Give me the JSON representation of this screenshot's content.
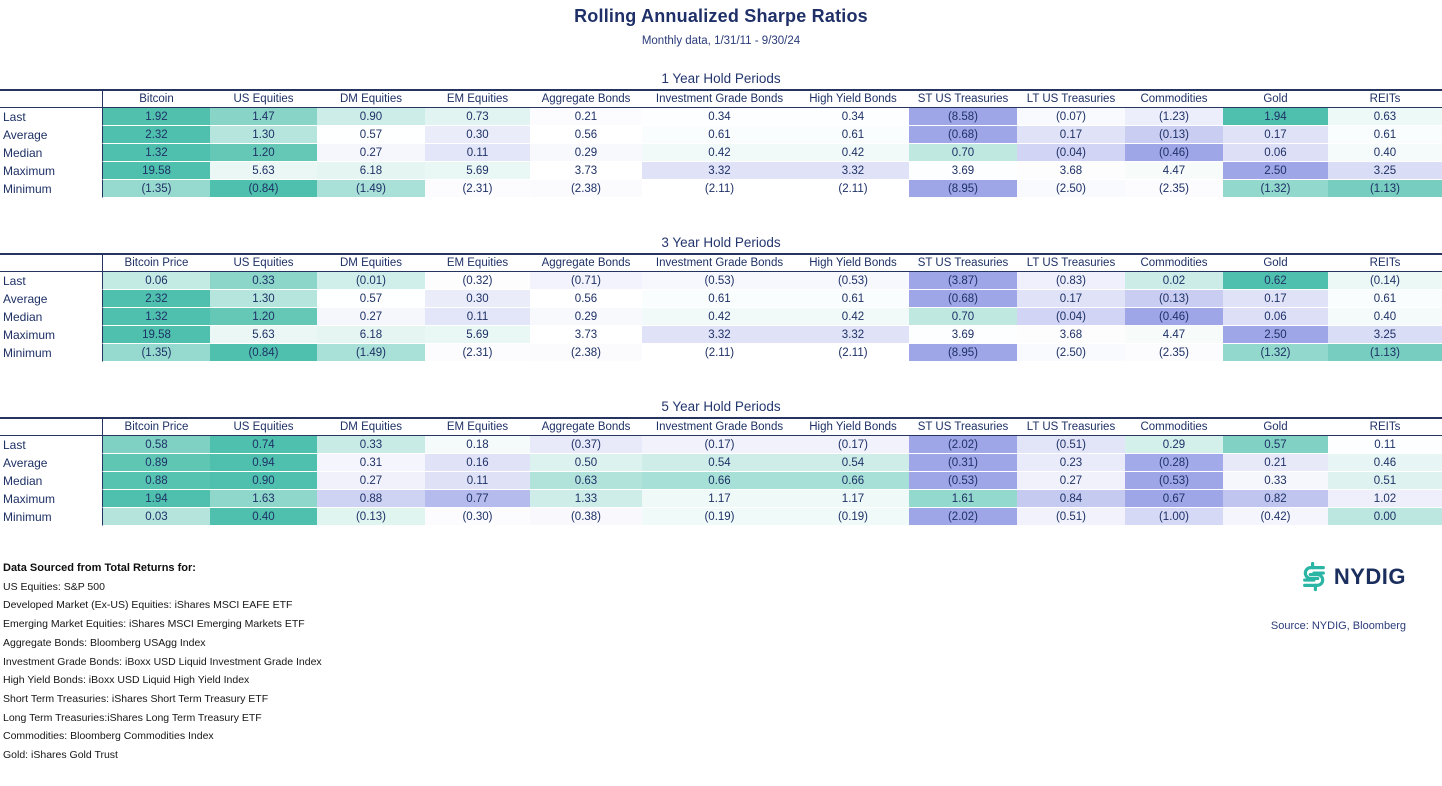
{
  "header": {
    "title": "Rolling Annualized Sharpe Ratios",
    "subtitle": "Monthly data, 1/31/11 - 9/30/24"
  },
  "colors": {
    "scale_max_teal": "#4FC0AD",
    "scale_mid_white": "#FFFFFF",
    "scale_min_purple": "#9EA6E8",
    "text_navy": "#1E3166",
    "border_navy": "#26355F",
    "logo_teal": "#2BB5A4",
    "logo_navy": "#1B2F5E"
  },
  "chart_data": [
    {
      "type": "heatmap",
      "title": "1 Year Hold Periods",
      "color_scale": "per-row: min=purple #9EA6E8, median=white, max=teal #4FC0AD; negatives shown in parentheses",
      "row_labels": [
        "Last",
        "Average",
        "Median",
        "Maximum",
        "Minimum"
      ],
      "columns": [
        "Bitcoin",
        "US Equities",
        "DM Equities",
        "EM Equities",
        "Aggregate Bonds",
        "Investment Grade Bonds",
        "High Yield Bonds",
        "ST US Treasuries",
        "LT US Treasuries",
        "Commodities",
        "Gold",
        "REITs"
      ],
      "rows": [
        [
          1.92,
          1.47,
          0.9,
          0.73,
          0.21,
          0.34,
          0.34,
          -8.58,
          -0.07,
          -1.23,
          1.94,
          0.63
        ],
        [
          2.32,
          1.3,
          0.57,
          0.3,
          0.56,
          0.61,
          0.61,
          -0.68,
          0.17,
          -0.13,
          0.17,
          0.61
        ],
        [
          1.32,
          1.2,
          0.27,
          0.11,
          0.29,
          0.42,
          0.42,
          0.7,
          -0.04,
          -0.46,
          0.06,
          0.4
        ],
        [
          19.58,
          5.63,
          6.18,
          5.69,
          3.73,
          3.32,
          3.32,
          3.69,
          3.68,
          4.47,
          2.5,
          3.25
        ],
        [
          -1.35,
          -0.84,
          -1.49,
          -2.31,
          -2.38,
          -2.11,
          -2.11,
          -8.95,
          -2.5,
          -2.35,
          -1.32,
          -1.13
        ]
      ]
    },
    {
      "type": "heatmap",
      "title": "3 Year Hold Periods",
      "color_scale": "per-row: min=purple #9EA6E8, median=white, max=teal #4FC0AD; negatives shown in parentheses",
      "row_labels": [
        "Last",
        "Average",
        "Median",
        "Maximum",
        "Minimum"
      ],
      "columns": [
        "Bitcoin Price",
        "US Equities",
        "DM Equities",
        "EM Equities",
        "Aggregate Bonds",
        "Investment Grade Bonds",
        "High Yield Bonds",
        "ST US Treasuries",
        "LT US Treasuries",
        "Commodities",
        "Gold",
        "REITs"
      ],
      "rows": [
        [
          0.06,
          0.33,
          -0.01,
          -0.32,
          -0.71,
          -0.53,
          -0.53,
          -3.87,
          -0.83,
          0.02,
          0.62,
          -0.14
        ],
        [
          2.32,
          1.3,
          0.57,
          0.3,
          0.56,
          0.61,
          0.61,
          -0.68,
          0.17,
          -0.13,
          0.17,
          0.61
        ],
        [
          1.32,
          1.2,
          0.27,
          0.11,
          0.29,
          0.42,
          0.42,
          0.7,
          -0.04,
          -0.46,
          0.06,
          0.4
        ],
        [
          19.58,
          5.63,
          6.18,
          5.69,
          3.73,
          3.32,
          3.32,
          3.69,
          3.68,
          4.47,
          2.5,
          3.25
        ],
        [
          -1.35,
          -0.84,
          -1.49,
          -2.31,
          -2.38,
          -2.11,
          -2.11,
          -8.95,
          -2.5,
          -2.35,
          -1.32,
          -1.13
        ]
      ]
    },
    {
      "type": "heatmap",
      "title": "5 Year Hold Periods",
      "color_scale": "per-row: min=purple #9EA6E8, median=white, max=teal #4FC0AD; negatives shown in parentheses",
      "row_labels": [
        "Last",
        "Average",
        "Median",
        "Maximum",
        "Minimum"
      ],
      "columns": [
        "Bitcoin Price",
        "US Equities",
        "DM Equities",
        "EM Equities",
        "Aggregate Bonds",
        "Investment Grade Bonds",
        "High Yield Bonds",
        "ST US Treasuries",
        "LT US Treasuries",
        "Commodities",
        "Gold",
        "REITs"
      ],
      "rows": [
        [
          0.58,
          0.74,
          0.33,
          0.18,
          -0.37,
          -0.17,
          -0.17,
          -2.02,
          -0.51,
          0.29,
          0.57,
          0.11
        ],
        [
          0.89,
          0.94,
          0.31,
          0.16,
          0.5,
          0.54,
          0.54,
          -0.31,
          0.23,
          -0.28,
          0.21,
          0.46
        ],
        [
          0.88,
          0.9,
          0.27,
          0.11,
          0.63,
          0.66,
          0.66,
          -0.53,
          0.27,
          -0.53,
          0.33,
          0.51
        ],
        [
          1.94,
          1.63,
          0.88,
          0.77,
          1.33,
          1.17,
          1.17,
          1.61,
          0.84,
          0.67,
          0.82,
          1.02
        ],
        [
          0.03,
          0.4,
          -0.13,
          -0.3,
          -0.38,
          -0.19,
          -0.19,
          -2.02,
          -0.51,
          -1.0,
          -0.42,
          0.0
        ]
      ]
    }
  ],
  "footer": {
    "heading": "Data Sourced from Total Returns for:",
    "lines": [
      "US Equities: S&P 500",
      "Developed Market (Ex-US) Equities: iShares MSCI EAFE ETF",
      "Emerging Market Equities: iShares MSCI Emerging Markets ETF",
      "Aggregate Bonds: Bloomberg USAgg Index",
      "Investment Grade Bonds: iBoxx USD Liquid Investment Grade Index",
      "High Yield Bonds: iBoxx USD Liquid High Yield Index",
      "Short Term Treasuries: iShares Short Term Treasury ETF",
      "Long Term Treasuries:iShares Long Term Treasury ETF",
      "Commodities: Bloomberg Commodities Index",
      "Gold: iShares Gold Trust"
    ],
    "logo_text": "NYDIG",
    "source": "Source: NYDIG, Bloomberg"
  }
}
